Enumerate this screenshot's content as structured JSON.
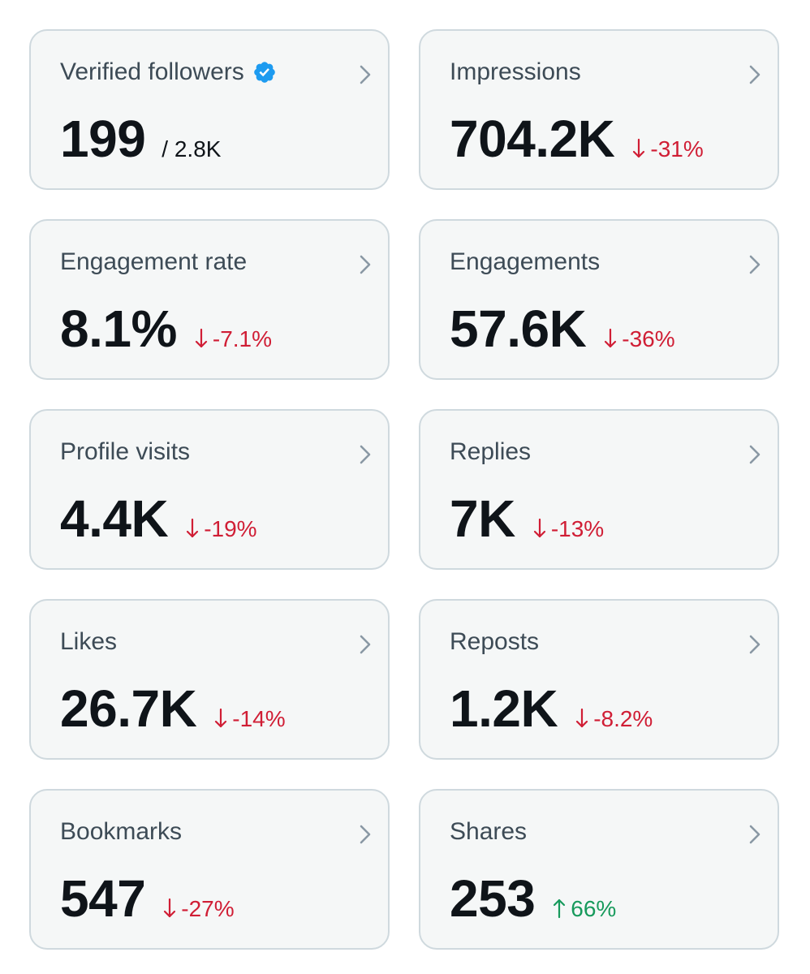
{
  "colors": {
    "card_background": "#f5f7f7",
    "card_border": "#cfd9de",
    "title": "#3d4b56",
    "value": "#0f1419",
    "negative": "#d01e35",
    "positive": "#179a5c",
    "verified": "#1d9bf0",
    "chevron": "#8a98a4"
  },
  "icons": {
    "verified": "verified-badge-icon",
    "chevron": "chevron-right-icon",
    "down": "arrow-down-icon",
    "up": "arrow-up-icon"
  },
  "cards": {
    "verified_followers": {
      "title": "Verified followers",
      "value": "199",
      "total": "/ 2.8K"
    },
    "impressions": {
      "title": "Impressions",
      "value": "704.2K",
      "change": "-31%",
      "direction": "down"
    },
    "engagement_rate": {
      "title": "Engagement rate",
      "value": "8.1%",
      "change": "-7.1%",
      "direction": "down"
    },
    "engagements": {
      "title": "Engagements",
      "value": "57.6K",
      "change": "-36%",
      "direction": "down"
    },
    "profile_visits": {
      "title": "Profile visits",
      "value": "4.4K",
      "change": "-19%",
      "direction": "down"
    },
    "replies": {
      "title": "Replies",
      "value": "7K",
      "change": "-13%",
      "direction": "down"
    },
    "likes": {
      "title": "Likes",
      "value": "26.7K",
      "change": "-14%",
      "direction": "down"
    },
    "reposts": {
      "title": "Reposts",
      "value": "1.2K",
      "change": "-8.2%",
      "direction": "down"
    },
    "bookmarks": {
      "title": "Bookmarks",
      "value": "547",
      "change": "-27%",
      "direction": "down"
    },
    "shares": {
      "title": "Shares",
      "value": "253",
      "change": "66%",
      "direction": "up"
    }
  }
}
